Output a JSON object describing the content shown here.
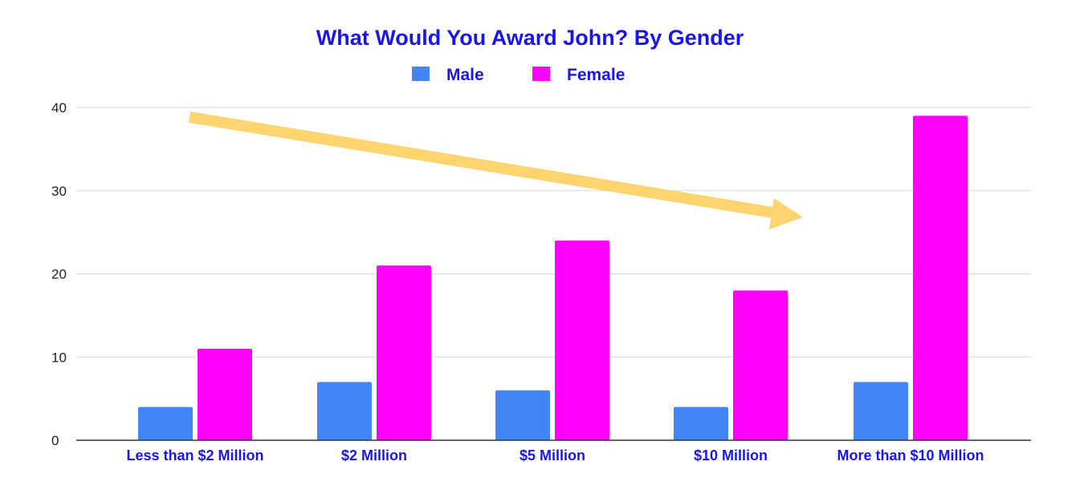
{
  "chart_data": {
    "type": "bar",
    "title": "What Would You Award John? By Gender",
    "xlabel": "",
    "ylabel": "",
    "categories": [
      "Less than $2 Million",
      "$2 Million",
      "$5 Million",
      "$10 Million",
      "More than $10 Million"
    ],
    "series": [
      {
        "name": "Male",
        "values": [
          4,
          7,
          6,
          4,
          7
        ],
        "color": "#4285f4"
      },
      {
        "name": "Female",
        "values": [
          11,
          21,
          24,
          18,
          39
        ],
        "color": "#ff00ff"
      }
    ],
    "ylim": [
      0,
      40
    ],
    "yticks": [
      0,
      10,
      20,
      30,
      40
    ],
    "grid": true,
    "legend_position": "top-center",
    "annotation": {
      "type": "arrow",
      "color": "#fdd46d",
      "direction": "down-right"
    }
  }
}
